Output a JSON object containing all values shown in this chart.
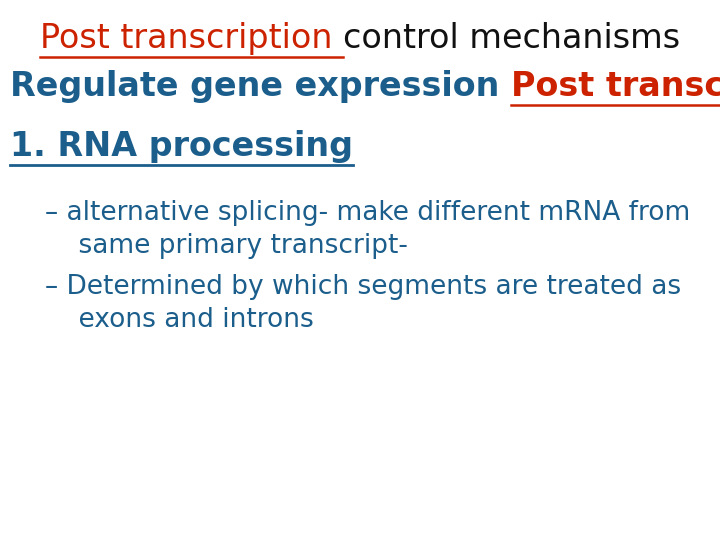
{
  "background_color": "#ffffff",
  "red_color": "#cc2200",
  "blue_color": "#1b5e8c",
  "black_color": "#111111",
  "title_fontsize": 24,
  "body_fontsize": 24,
  "bullet_fontsize": 19,
  "title_red": "Post transcription ",
  "title_black": "control mechanisms",
  "line2_blue": "Regulate gene expression ",
  "line2_red": "Post transcription :",
  "line3": "1. RNA processing",
  "b1l1": "– alternative splicing- make different mRNA from",
  "b1l2": "    same primary transcript-",
  "b2l1": "– Determined by which segments are treated as",
  "b2l2": "    exons and introns"
}
